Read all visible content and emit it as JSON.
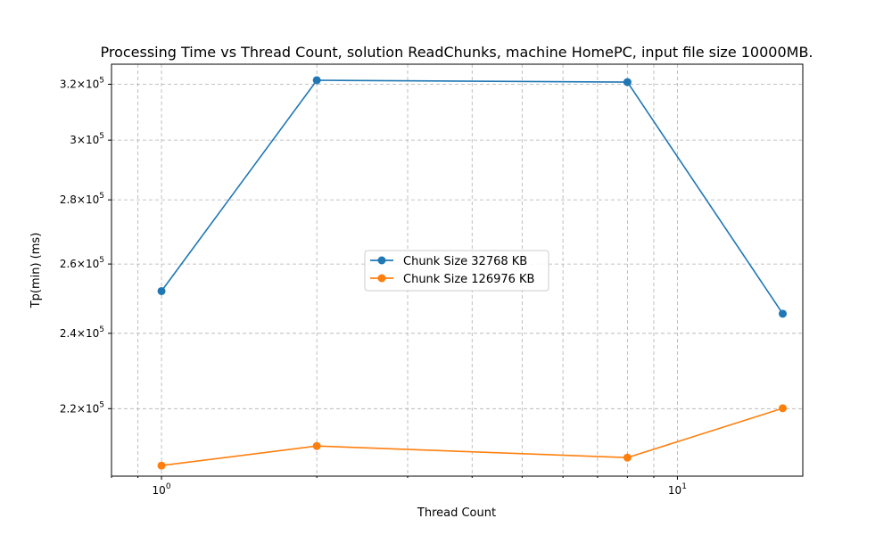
{
  "chart_data": {
    "type": "line",
    "title": "Processing Time vs Thread Count, solution ReadChunks, machine HomePC, input file size 10000MB.",
    "xlabel": "Thread Count",
    "ylabel": "Tp(min) (ms)",
    "xscale": "log",
    "yscale": "log",
    "xlim": [
      0.8,
      17.5
    ],
    "ylim": [
      203500,
      327500
    ],
    "x": [
      1,
      2,
      8,
      16
    ],
    "x_ticks": [
      {
        "value": 1,
        "base": "10",
        "exp": "0"
      },
      {
        "value": 10,
        "base": "10",
        "exp": "1"
      }
    ],
    "y_ticks": [
      {
        "value": 220000,
        "mant": "2.2",
        "base": "10",
        "exp": "5"
      },
      {
        "value": 240000,
        "mant": "2.4",
        "base": "10",
        "exp": "5"
      },
      {
        "value": 260000,
        "mant": "2.6",
        "base": "10",
        "exp": "5"
      },
      {
        "value": 280000,
        "mant": "2.8",
        "base": "10",
        "exp": "5"
      },
      {
        "value": 300000,
        "mant": "3",
        "base": "10",
        "exp": "5"
      },
      {
        "value": 320000,
        "mant": "3.2",
        "base": "10",
        "exp": "5"
      }
    ],
    "grid": true,
    "legend_position": "center",
    "series": [
      {
        "name": "Chunk Size 32768 KB",
        "color": "#1f77b4",
        "values": [
          252000,
          321500,
          320800,
          245500
        ]
      },
      {
        "name": "Chunk Size 126976 KB",
        "color": "#ff7f0e",
        "values": [
          206000,
          210700,
          207900,
          220100
        ]
      }
    ]
  }
}
